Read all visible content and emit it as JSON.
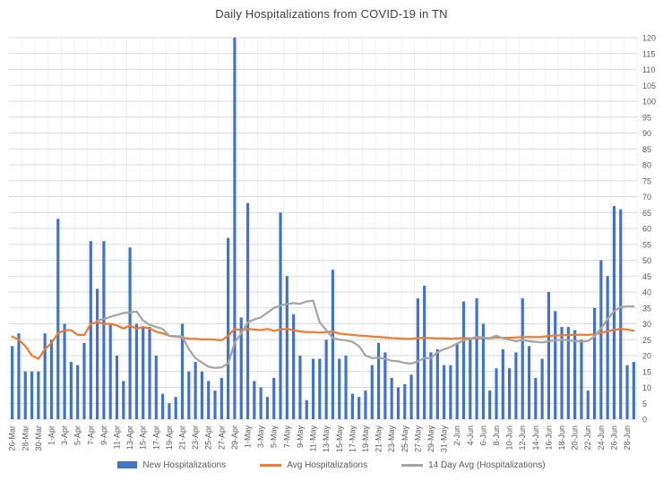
{
  "chart_data": {
    "type": "combo",
    "title": "Daily Hospitalizations from COVID-19 in TN",
    "ylim": [
      0,
      120
    ],
    "y_tick_step": 5,
    "y_axis_side": "right",
    "x_tick_every": 2,
    "grid": {
      "horizontal": true,
      "vertical": "faint"
    },
    "legend_position": "bottom",
    "colors": {
      "bar": "#4472C4",
      "avg_line": "#ED7D31",
      "avg14_line": "#A5A5A5",
      "gridline": "#D9D9D9",
      "vgridline": "#F2F2F2",
      "axis_text": "#595959",
      "title_text": "#3F3F3F"
    },
    "categories": [
      "26-Mar",
      "27-Mar",
      "28-Mar",
      "29-Mar",
      "30-Mar",
      "31-Mar",
      "1-Apr",
      "2-Apr",
      "3-Apr",
      "4-Apr",
      "5-Apr",
      "6-Apr",
      "7-Apr",
      "8-Apr",
      "9-Apr",
      "10-Apr",
      "11-Apr",
      "12-Apr",
      "13-Apr",
      "14-Apr",
      "15-Apr",
      "16-Apr",
      "17-Apr",
      "18-Apr",
      "19-Apr",
      "20-Apr",
      "21-Apr",
      "22-Apr",
      "23-Apr",
      "24-Apr",
      "25-Apr",
      "26-Apr",
      "27-Apr",
      "28-Apr",
      "29-Apr",
      "30-Apr",
      "1-May",
      "2-May",
      "3-May",
      "4-May",
      "5-May",
      "6-May",
      "7-May",
      "8-May",
      "9-May",
      "10-May",
      "11-May",
      "12-May",
      "13-May",
      "14-May",
      "15-May",
      "16-May",
      "17-May",
      "18-May",
      "19-May",
      "20-May",
      "21-May",
      "22-May",
      "23-May",
      "24-May",
      "25-May",
      "26-May",
      "27-May",
      "28-May",
      "29-May",
      "30-May",
      "31-May",
      "1-Jun",
      "2-Jun",
      "3-Jun",
      "4-Jun",
      "5-Jun",
      "6-Jun",
      "7-Jun",
      "8-Jun",
      "9-Jun",
      "10-Jun",
      "11-Jun",
      "12-Jun",
      "13-Jun",
      "14-Jun",
      "15-Jun",
      "16-Jun",
      "17-Jun",
      "18-Jun",
      "19-Jun",
      "20-Jun",
      "21-Jun",
      "22-Jun",
      "23-Jun",
      "24-Jun",
      "25-Jun",
      "26-Jun",
      "27-Jun",
      "28-Jun",
      "29-Jun"
    ],
    "series": [
      {
        "name": "New Hospitalizations",
        "type": "bar",
        "color": "#4472C4",
        "values": [
          23,
          27,
          15,
          15,
          15,
          27,
          25,
          63,
          30,
          18,
          17,
          24,
          56,
          41,
          56,
          30,
          20,
          12,
          54,
          30,
          29,
          29,
          20,
          8,
          5,
          7,
          30,
          15,
          18,
          15,
          12,
          9,
          13,
          57,
          120,
          32,
          68,
          12,
          10,
          7,
          13,
          65,
          45,
          33,
          20,
          6,
          19,
          19,
          25,
          47,
          19,
          20,
          8,
          7,
          9,
          17,
          24,
          21,
          13,
          10,
          11,
          14,
          38,
          42,
          21,
          22,
          17,
          17,
          24,
          37,
          25,
          38,
          30,
          9,
          16,
          22,
          16,
          21,
          38,
          23,
          13,
          19,
          40,
          34,
          29,
          29,
          28,
          25,
          9,
          35,
          50,
          45,
          67,
          66,
          17,
          18
        ]
      },
      {
        "name": "Avg Hospitalizations",
        "type": "line",
        "color": "#ED7D31",
        "values": [
          26,
          25,
          23,
          20,
          19,
          22,
          24,
          27,
          28,
          28,
          26.5,
          26.5,
          30,
          30.5,
          30,
          30,
          29.5,
          28.5,
          29.5,
          28.5,
          29,
          28.5,
          27.5,
          27,
          26.2,
          26,
          25.7,
          25.3,
          25.3,
          25.1,
          25.1,
          25,
          24.8,
          26.2,
          28.4,
          28,
          28.4,
          28.2,
          28,
          28.4,
          27.8,
          28.2,
          28.4,
          28,
          27.6,
          27.4,
          27.4,
          27.2,
          27.4,
          27.6,
          26.9,
          26.7,
          26.5,
          26.3,
          26.2,
          26,
          25.9,
          25.7,
          25.5,
          25.4,
          25.3,
          25.3,
          25.5,
          25.6,
          25.5,
          25.4,
          25.4,
          25.3,
          25.4,
          25.5,
          25.4,
          25.5,
          25.5,
          25.4,
          25.7,
          25.6,
          25.6,
          25.7,
          25.8,
          25.9,
          25.8,
          25.9,
          26.2,
          26.3,
          26.4,
          26.5,
          26.5,
          26.6,
          26.5,
          26.7,
          27.2,
          27.6,
          28.1,
          28.4,
          28.2,
          27.8
        ]
      },
      {
        "name": "14 Day Avg (Hospitalizations)",
        "type": "line",
        "color": "#A5A5A5",
        "values": [
          null,
          null,
          null,
          null,
          null,
          null,
          null,
          null,
          null,
          null,
          null,
          null,
          null,
          31,
          31.5,
          32.2,
          32.8,
          33.4,
          33.6,
          33.9,
          31,
          29.7,
          29,
          28.4,
          26.2,
          26.1,
          26,
          22,
          19.2,
          17.8,
          16.5,
          16.1,
          16.3,
          17.5,
          24,
          27,
          30.4,
          31.4,
          32,
          33.5,
          35,
          35.8,
          36.2,
          36.5,
          36.3,
          37,
          37.3,
          30.5,
          28,
          25.5,
          25,
          24.8,
          24.3,
          23,
          20,
          19.2,
          19.3,
          19,
          18.4,
          18.2,
          17.7,
          17.5,
          18.2,
          19.2,
          19.2,
          21,
          22,
          22.7,
          23.8,
          24.8,
          25.3,
          25.9,
          25.7,
          25.5,
          26.2,
          25.5,
          25,
          24.5,
          25,
          24.5,
          24.3,
          24.1,
          24.5,
          24.8,
          25,
          24.8,
          24.6,
          24.4,
          24.6,
          26,
          28.5,
          31.5,
          34,
          35.3,
          35.5,
          35.5
        ]
      }
    ]
  }
}
